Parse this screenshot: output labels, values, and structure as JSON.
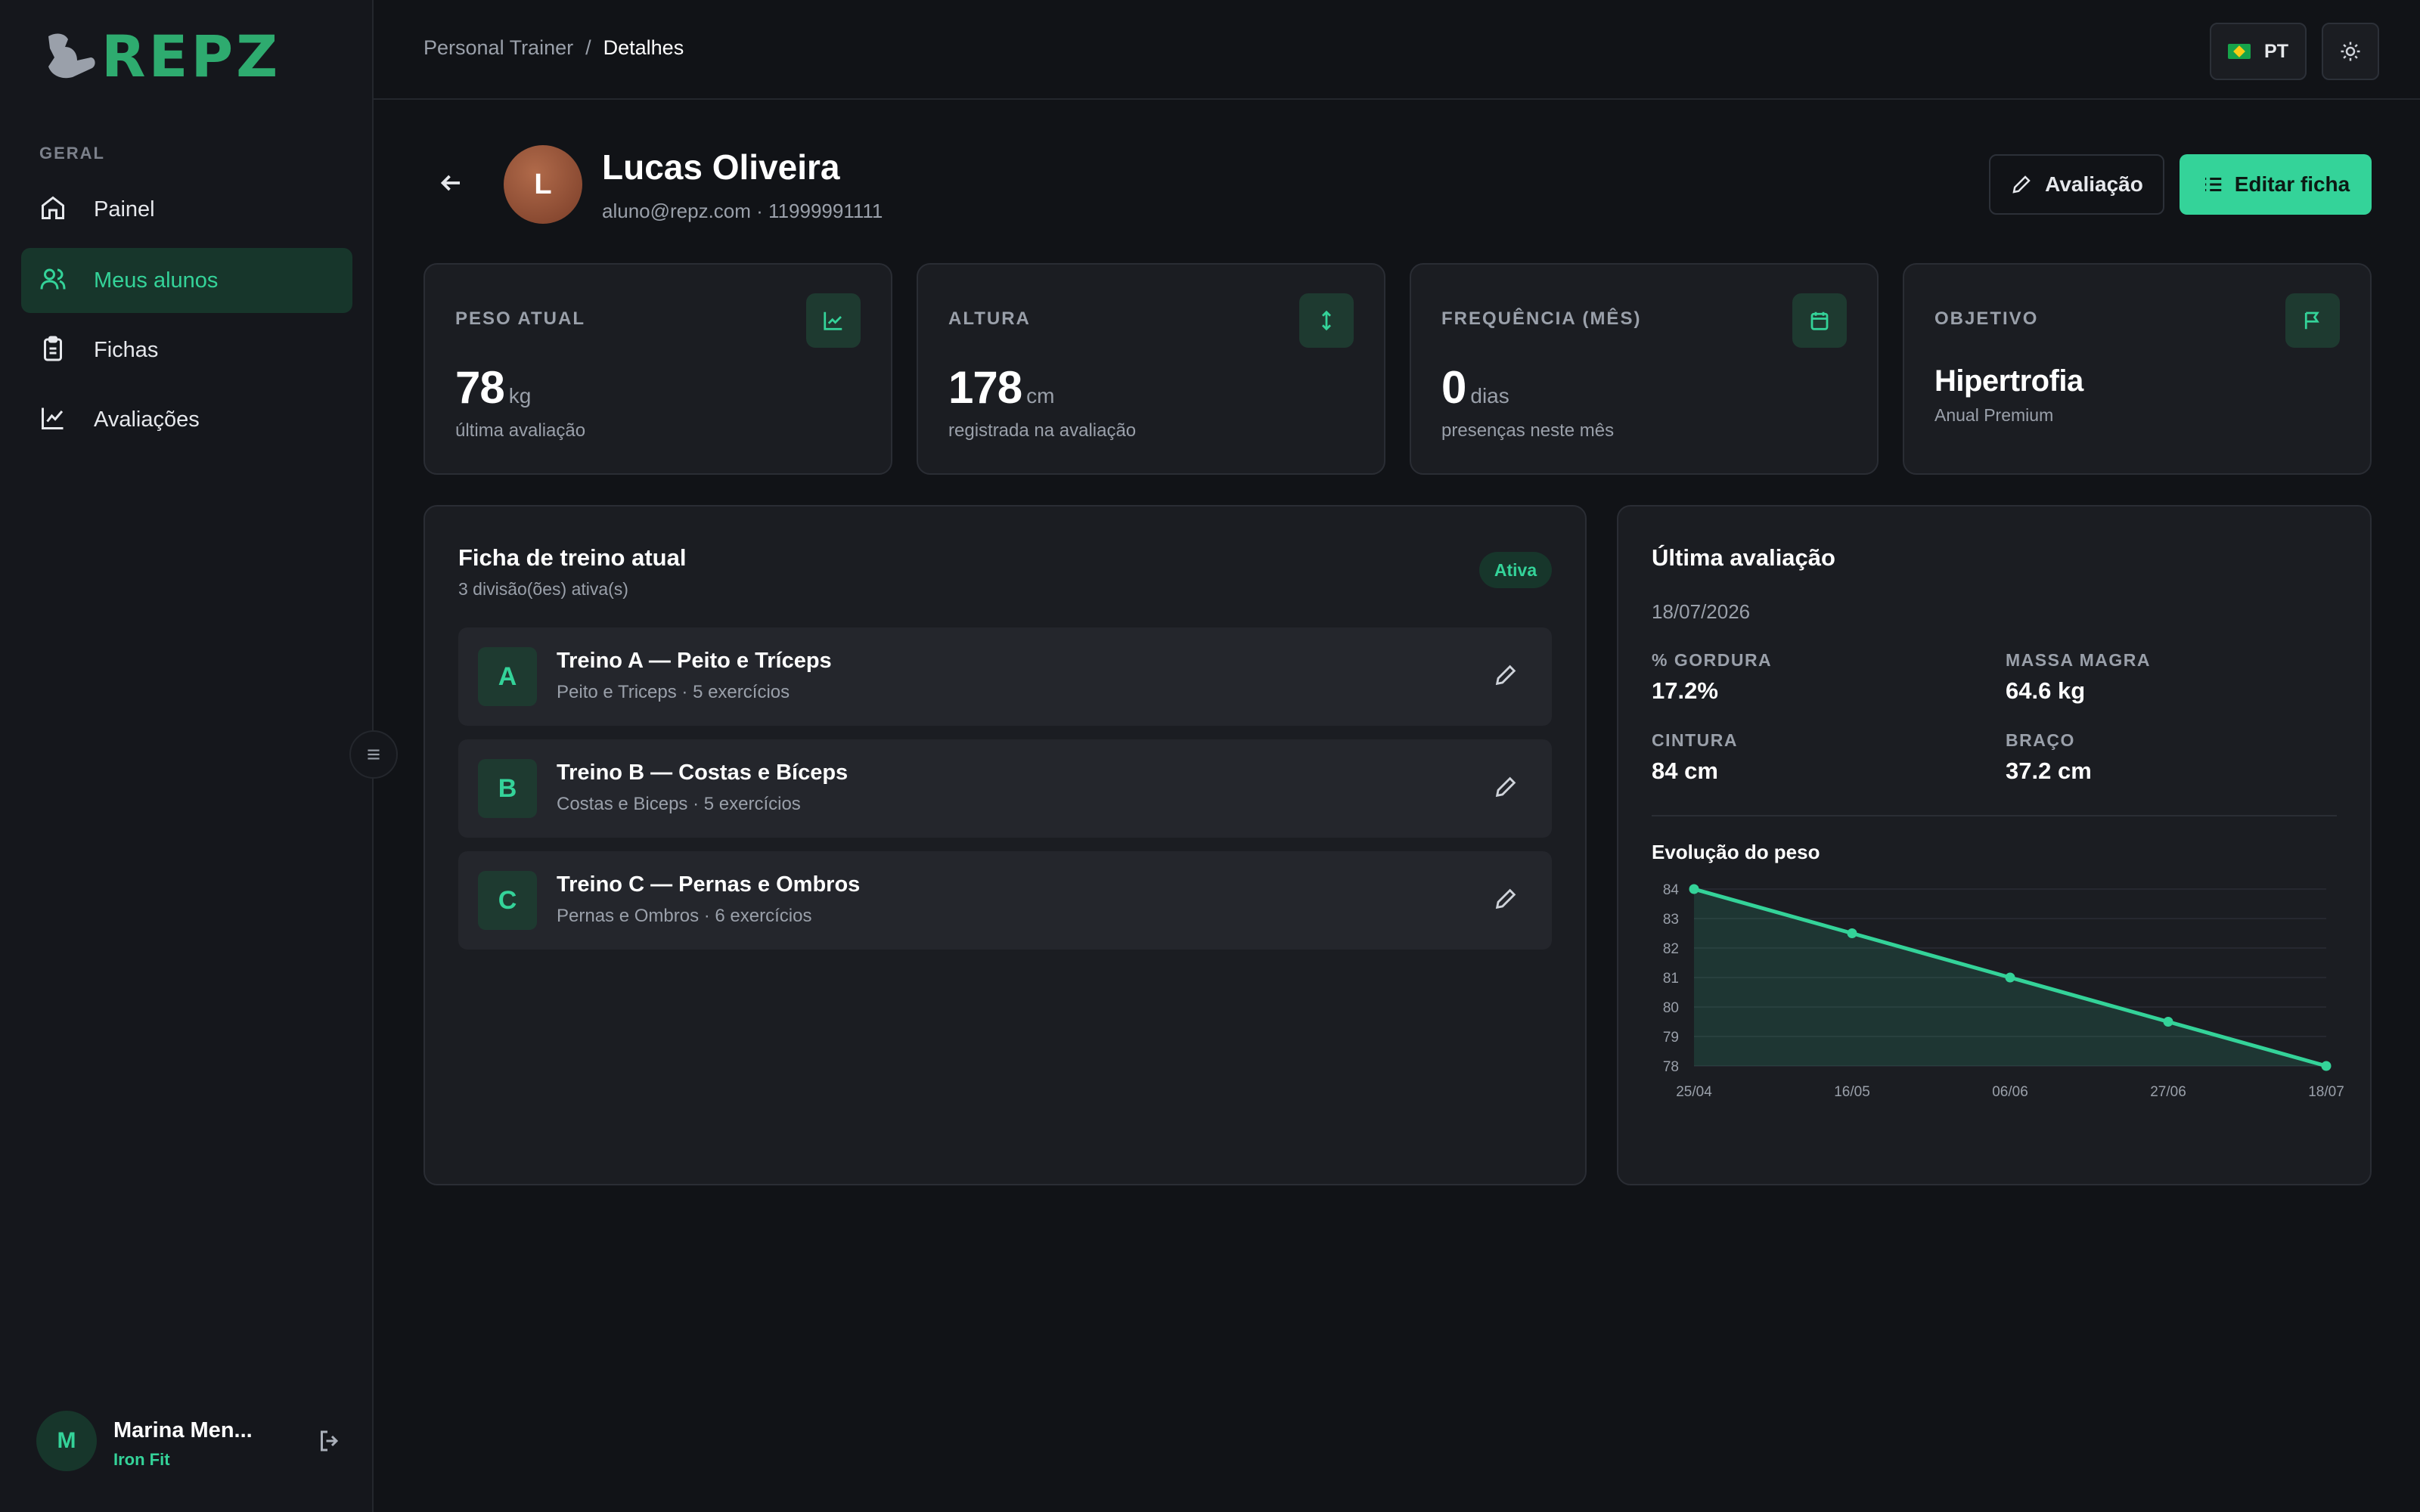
{
  "app": {
    "logo_text": "REPZ"
  },
  "sidebar": {
    "section_label": "GERAL",
    "items": [
      {
        "label": "Painel",
        "icon": "home-icon",
        "active": false
      },
      {
        "label": "Meus alunos",
        "icon": "users-icon",
        "active": true
      },
      {
        "label": "Fichas",
        "icon": "clipboard-icon",
        "active": false
      },
      {
        "label": "Avaliações",
        "icon": "chart-line-icon",
        "active": false
      }
    ],
    "user": {
      "initial": "M",
      "name": "Marina Men...",
      "org": "Iron Fit"
    }
  },
  "topbar": {
    "breadcrumb": [
      "Personal Trainer",
      "/",
      "Detalhes"
    ],
    "language": "PT"
  },
  "student": {
    "initial": "L",
    "name": "Lucas Oliveira",
    "contact": "aluno@repz.com · 11999991111",
    "buttons": {
      "evaluation": "Avaliação",
      "edit_sheet": "Editar ficha"
    }
  },
  "stats": [
    {
      "label": "PESO ATUAL",
      "value": "78",
      "unit": "kg",
      "sub": "última avaliação",
      "icon": "trending-up-icon"
    },
    {
      "label": "ALTURA",
      "value": "178",
      "unit": "cm",
      "sub": "registrada na avaliação",
      "icon": "arrows-vertical-icon"
    },
    {
      "label": "FREQUÊNCIA (MÊS)",
      "value": "0",
      "unit": "dias",
      "sub": "presenças neste mês",
      "icon": "calendar-icon"
    },
    {
      "label": "OBJETIVO",
      "value": "Hipertrofia",
      "unit": "",
      "sub": "Anual Premium",
      "icon": "flag-icon"
    }
  ],
  "workout": {
    "title": "Ficha de treino atual",
    "subtitle": "3 divisão(ões) ativa(s)",
    "status": "Ativa",
    "divisions": [
      {
        "letter": "A",
        "name": "Treino A — Peito e Tríceps",
        "meta": "Peito e Triceps · 5 exercícios"
      },
      {
        "letter": "B",
        "name": "Treino B — Costas e Bíceps",
        "meta": "Costas e Biceps · 5 exercícios"
      },
      {
        "letter": "C",
        "name": "Treino C — Pernas e Ombros",
        "meta": "Pernas e Ombros · 6 exercícios"
      }
    ]
  },
  "evaluation": {
    "title": "Última avaliação",
    "date": "18/07/2026",
    "metrics": [
      {
        "label": "% GORDURA",
        "value": "17.2%"
      },
      {
        "label": "MASSA MAGRA",
        "value": "64.6 kg"
      },
      {
        "label": "CINTURA",
        "value": "84 cm"
      },
      {
        "label": "BRAÇO",
        "value": "37.2 cm"
      }
    ],
    "chart_title": "Evolução do peso"
  },
  "colors": {
    "accent": "#34d399",
    "background": "#111317",
    "card": "#1b1d22"
  },
  "chart_data": {
    "type": "area",
    "title": "Evolução do peso",
    "x": [
      "25/04",
      "16/05",
      "06/06",
      "27/06",
      "18/07"
    ],
    "series": [
      {
        "values": [
          84,
          82.5,
          81,
          79.5,
          78
        ]
      }
    ],
    "ylim": [
      78,
      84
    ],
    "yticks": [
      84,
      83,
      82,
      81,
      80,
      79,
      78
    ],
    "grid": true
  }
}
